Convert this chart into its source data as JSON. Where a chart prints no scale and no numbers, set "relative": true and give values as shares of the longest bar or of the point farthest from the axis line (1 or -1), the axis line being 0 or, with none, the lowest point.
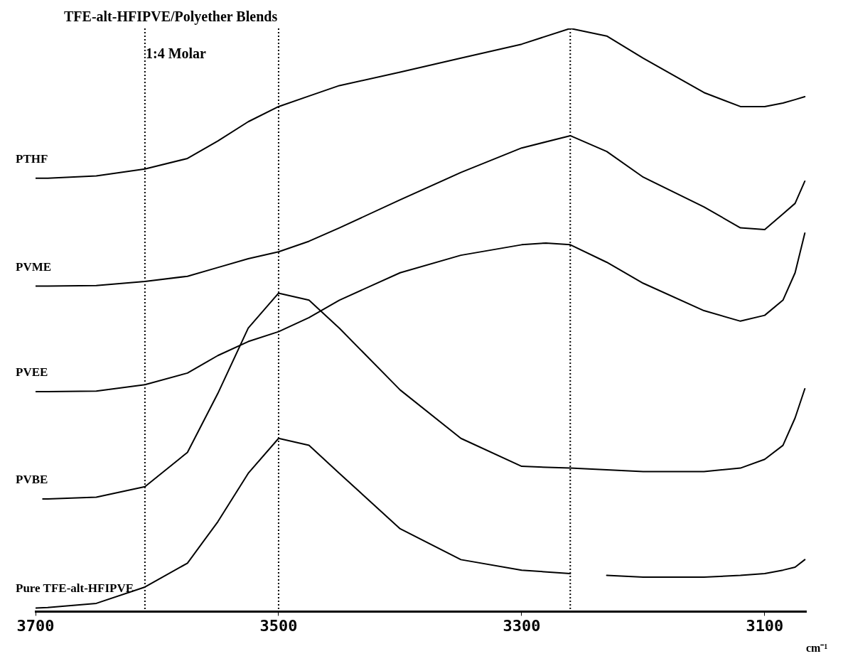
{
  "chart_data": {
    "type": "line",
    "title": "TFE-alt-HFIPVE/Polyether Blends",
    "subtitle": "1:4 Molar",
    "xlabel": "cm⁻¹",
    "relative": true,
    "line_style": "solid",
    "xlim": [
      3700,
      3066
    ],
    "xticks": [
      3700,
      3500,
      3300,
      3100
    ],
    "ref_lines": [
      {
        "axis": "x",
        "value": 3610,
        "line_style": "dotted"
      },
      {
        "axis": "x",
        "value": 3500,
        "line_style": "dotted"
      },
      {
        "axis": "x",
        "value": 3260,
        "line_style": "dotted"
      }
    ],
    "series": [
      {
        "name": "PTHF",
        "color": "#000000",
        "x": [
          3700,
          3690,
          3650,
          3610,
          3575,
          3550,
          3525,
          3500,
          3475,
          3450,
          3400,
          3350,
          3300,
          3260,
          3230,
          3200,
          3150,
          3120,
          3100,
          3085,
          3075,
          3067
        ],
        "values": [
          0.743,
          0.743,
          0.747,
          0.759,
          0.777,
          0.807,
          0.84,
          0.866,
          0.884,
          0.902,
          0.925,
          0.949,
          0.973,
          1,
          0.987,
          0.949,
          0.89,
          0.866,
          0.866,
          0.872,
          0.878,
          0.883
        ]
      },
      {
        "name": "PVME",
        "color": "#000000",
        "x": [
          3700,
          3690,
          3650,
          3610,
          3575,
          3550,
          3525,
          3500,
          3475,
          3450,
          3400,
          3350,
          3300,
          3260,
          3230,
          3200,
          3150,
          3120,
          3100,
          3085,
          3075,
          3067
        ],
        "values": [
          0.558,
          0.558,
          0.559,
          0.566,
          0.575,
          0.59,
          0.605,
          0.617,
          0.635,
          0.658,
          0.706,
          0.753,
          0.795,
          0.816,
          0.789,
          0.745,
          0.694,
          0.658,
          0.655,
          0.682,
          0.7,
          0.738
        ]
      },
      {
        "name": "PVEE",
        "color": "#000000",
        "x": [
          3700,
          3690,
          3650,
          3610,
          3575,
          3550,
          3525,
          3500,
          3475,
          3450,
          3400,
          3350,
          3300,
          3280,
          3260,
          3230,
          3200,
          3150,
          3120,
          3100,
          3085,
          3075,
          3067
        ],
        "values": [
          0.377,
          0.377,
          0.378,
          0.389,
          0.409,
          0.439,
          0.463,
          0.48,
          0.504,
          0.534,
          0.581,
          0.611,
          0.629,
          0.632,
          0.629,
          0.599,
          0.563,
          0.516,
          0.498,
          0.508,
          0.534,
          0.581,
          0.649
        ]
      },
      {
        "name": "PVBE",
        "color": "#000000",
        "x": [
          3694,
          3690,
          3650,
          3610,
          3575,
          3550,
          3525,
          3500,
          3475,
          3450,
          3400,
          3350,
          3300,
          3260,
          3230,
          3200,
          3150,
          3120,
          3100,
          3085,
          3075,
          3067
        ],
        "values": [
          0.193,
          0.193,
          0.196,
          0.214,
          0.273,
          0.374,
          0.486,
          0.546,
          0.534,
          0.486,
          0.38,
          0.297,
          0.249,
          0.246,
          0.243,
          0.24,
          0.24,
          0.246,
          0.261,
          0.285,
          0.332,
          0.382
        ]
      },
      {
        "name": "Pure TFE-alt-HFIPVE",
        "color": "#000000",
        "x": [
          3700,
          3690,
          3650,
          3610,
          3575,
          3550,
          3525,
          3500,
          3475,
          3450,
          3400,
          3350,
          3300,
          3260,
          3245,
          3230,
          3200,
          3150,
          3120,
          3100,
          3085,
          3075,
          3067
        ],
        "values": [
          0.006,
          0.007,
          0.014,
          0.042,
          0.083,
          0.154,
          0.237,
          0.297,
          0.285,
          0.237,
          0.142,
          0.089,
          0.071,
          0.065,
          null,
          0.062,
          0.059,
          0.059,
          0.062,
          0.065,
          0.071,
          0.076,
          0.089
        ]
      }
    ]
  }
}
